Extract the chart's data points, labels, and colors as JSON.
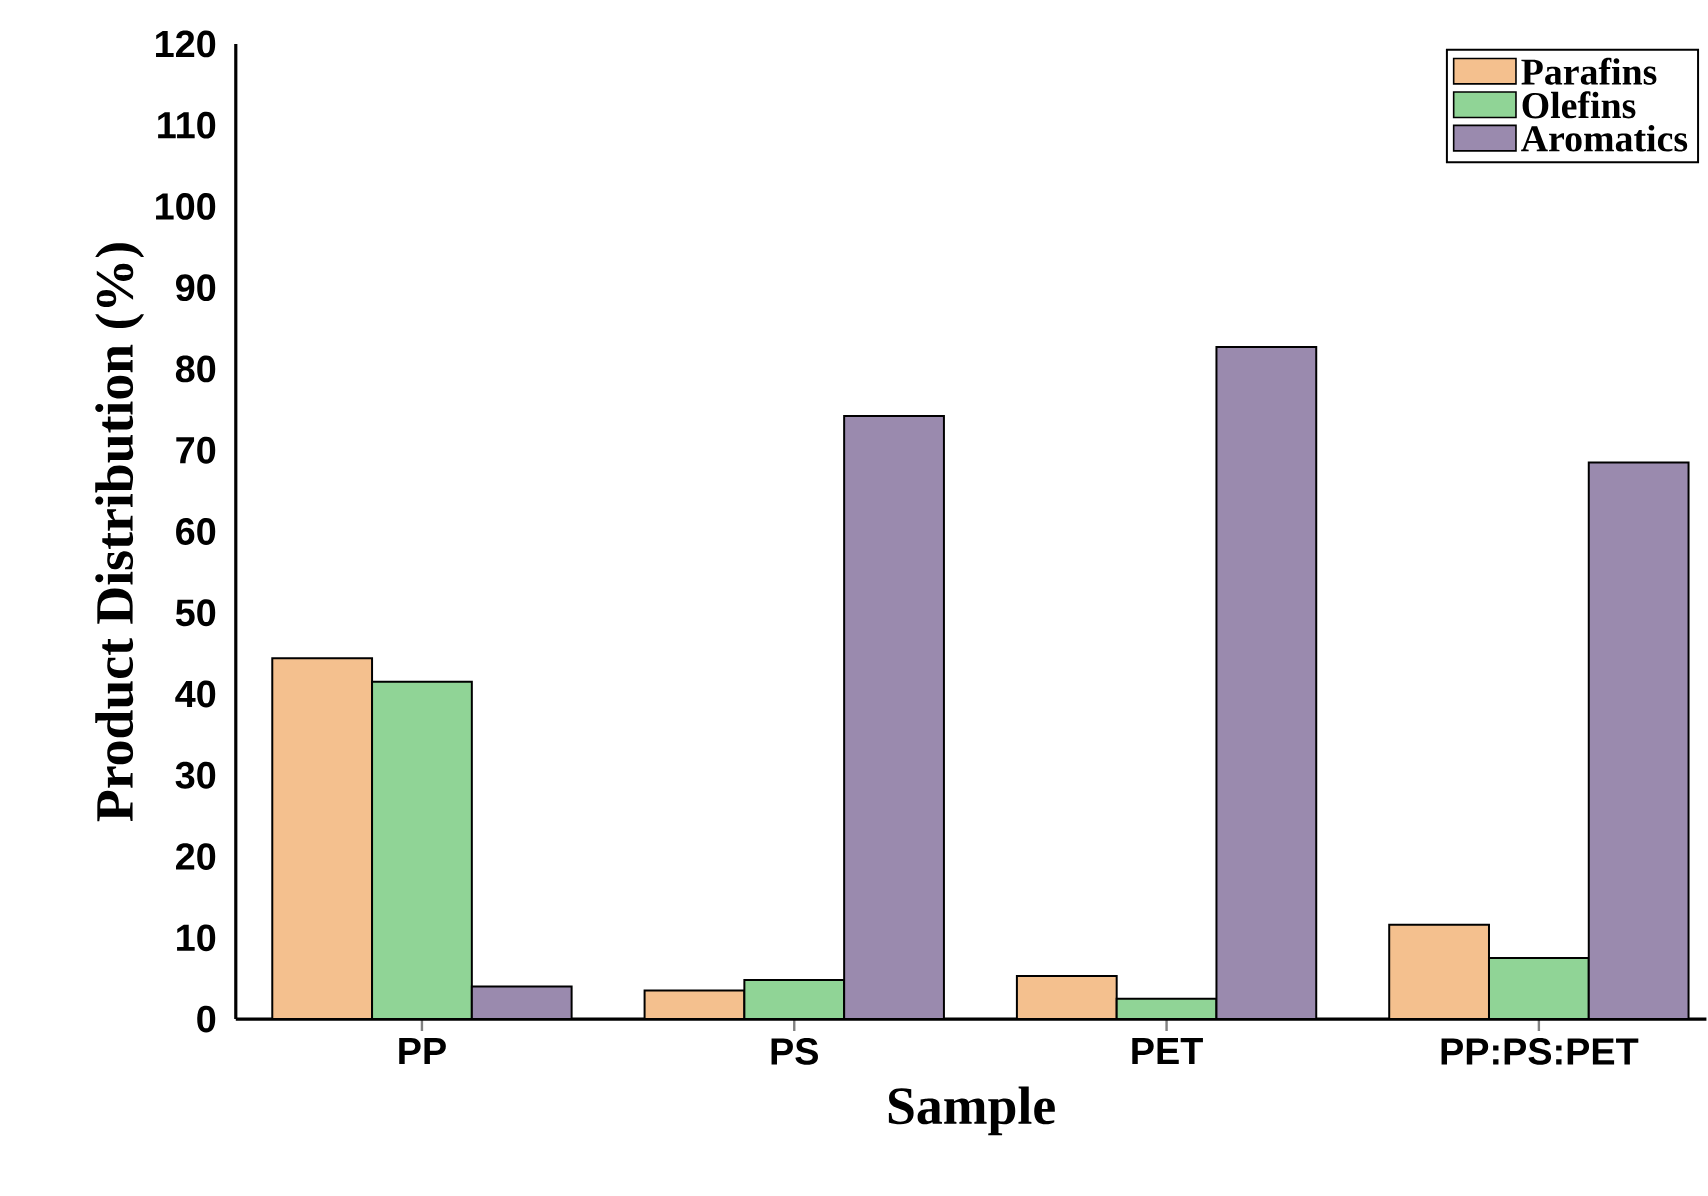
{
  "chart_data": {
    "type": "bar",
    "xlabel": "Sample",
    "ylabel": "Product Distribution (%)",
    "categories": [
      "PP",
      "PS",
      "PET",
      "PP:PS:PET"
    ],
    "series": [
      {
        "name": "Parafins",
        "color": "#f4c08e",
        "values": [
          44.4,
          3.5,
          5.3,
          11.6
        ]
      },
      {
        "name": "Olefins",
        "color": "#90d496",
        "values": [
          41.5,
          4.8,
          2.5,
          7.5
        ]
      },
      {
        "name": "Aromatics",
        "color": "#9a8aae",
        "values": [
          4.0,
          74.2,
          82.7,
          68.5
        ]
      }
    ],
    "ylim": [
      0,
      120
    ],
    "yticks": [
      0,
      10,
      20,
      30,
      40,
      50,
      60,
      70,
      80,
      90,
      100,
      110,
      120
    ],
    "legend": "top right"
  }
}
